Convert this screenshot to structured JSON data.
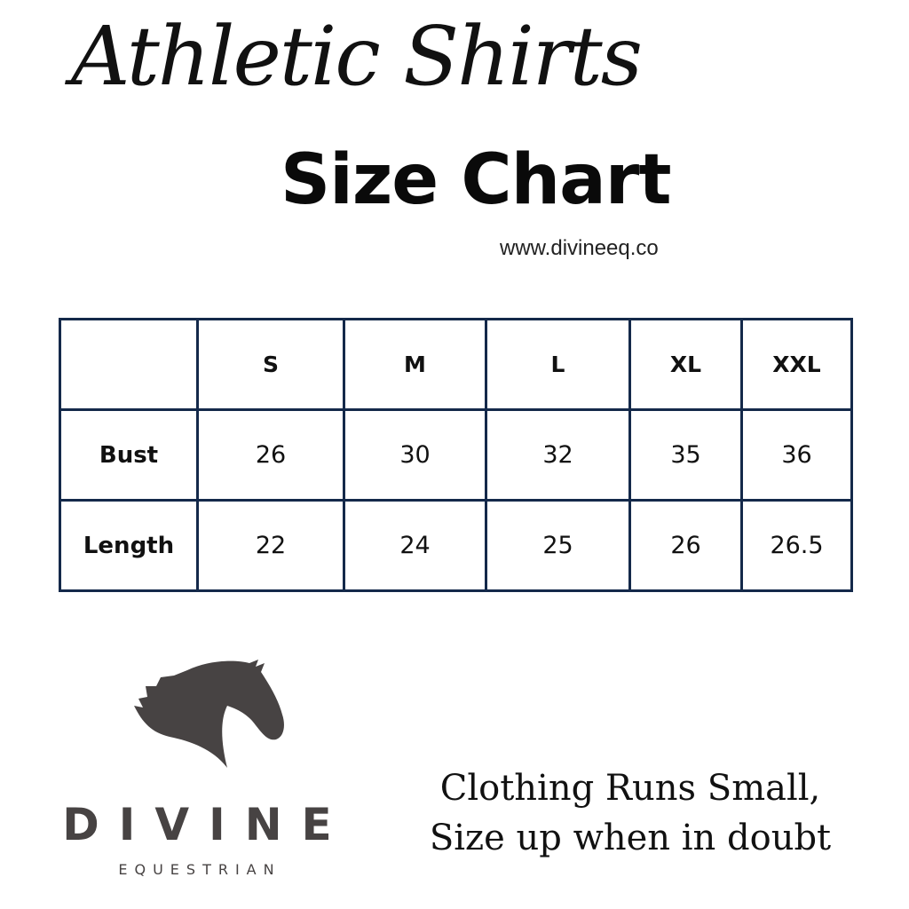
{
  "header": {
    "script_title": "Athletic Shirts",
    "title": "Size Chart",
    "url": "www.divineeq.co"
  },
  "table": {
    "columns": [
      "",
      "S",
      "M",
      "L",
      "XL",
      "XXL"
    ],
    "rows": [
      {
        "label": "Bust",
        "values": [
          "26",
          "30",
          "32",
          "35",
          "36"
        ]
      },
      {
        "label": "Length",
        "values": [
          "22",
          "24",
          "25",
          "26",
          "26.5"
        ]
      }
    ],
    "border_color": "#14294a"
  },
  "logo": {
    "icon": "horse-head-icon",
    "brand": "DIVINE",
    "sub": "EQUESTRIAN",
    "color": "#474343"
  },
  "note": {
    "line1": "Clothing Runs Small,",
    "line2": "Size up when in doubt"
  }
}
